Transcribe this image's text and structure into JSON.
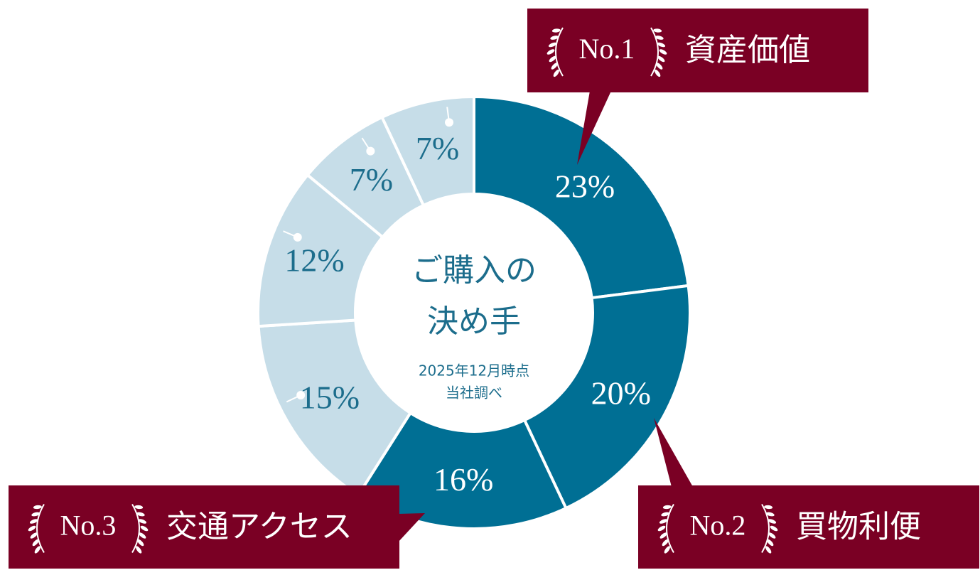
{
  "chart_data": {
    "type": "donut",
    "categories": [
      "資産価値",
      "買物利便",
      "交通アクセス",
      null,
      null,
      null,
      null
    ],
    "ranks": [
      "No.1",
      "No.2",
      "No.3",
      null,
      null,
      null,
      null
    ],
    "values": [
      23,
      20,
      16,
      15,
      12,
      7,
      7
    ],
    "value_labels": [
      "23%",
      "20%",
      "16%",
      "15%",
      "12%",
      "7%",
      "7%"
    ],
    "colors": [
      "#006f94",
      "#006f94",
      "#006f94",
      "#c6dde8",
      "#c6dde8",
      "#c6dde8",
      "#c6dde8"
    ],
    "center_lines": [
      "ご購入の",
      "決め手"
    ],
    "note_lines": [
      "2025年12月時点",
      "当社調べ"
    ]
  }
}
